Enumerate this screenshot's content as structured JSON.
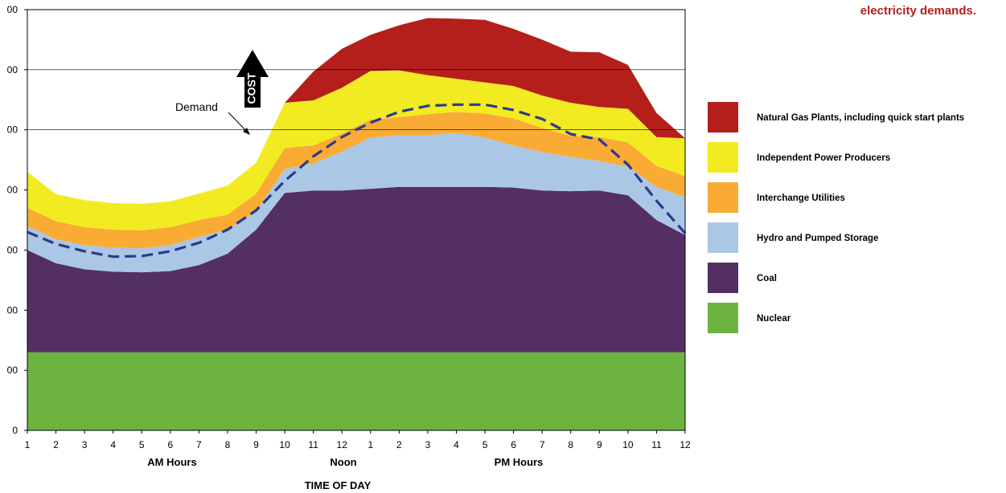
{
  "caption_text": "electricity demands.",
  "chart_data": {
    "type": "area",
    "stacked": true,
    "x": [
      1,
      2,
      3,
      4,
      5,
      6,
      7,
      8,
      9,
      10,
      11,
      12,
      13,
      14,
      15,
      16,
      17,
      18,
      19,
      20,
      21,
      22,
      23,
      24
    ],
    "x_tick_labels": [
      "1",
      "2",
      "3",
      "4",
      "5",
      "6",
      "7",
      "8",
      "9",
      "10",
      "11",
      "12",
      "1",
      "2",
      "3",
      "4",
      "5",
      "6",
      "7",
      "8",
      "9",
      "10",
      "11",
      "12"
    ],
    "y_tick_labels": [
      "0",
      "00",
      "00",
      "00",
      "00",
      "00",
      "00",
      "00"
    ],
    "ylim": [
      0,
      7000
    ],
    "grid_lines_at": [
      5000,
      6000
    ],
    "xlabel": "TIME OF DAY",
    "x_group_labels": [
      "AM Hours",
      "Noon",
      "PM Hours"
    ],
    "annotations": {
      "demand": "Demand",
      "cost": "COST"
    },
    "legend_position": "right",
    "series": [
      {
        "name": "Nuclear",
        "color": "#6db33f",
        "values": [
          1300,
          1300,
          1300,
          1300,
          1300,
          1300,
          1300,
          1300,
          1300,
          1300,
          1300,
          1300,
          1300,
          1300,
          1300,
          1300,
          1300,
          1300,
          1300,
          1300,
          1300,
          1300,
          1300,
          1300
        ]
      },
      {
        "name": "Coal",
        "color": "#532f63",
        "values": [
          1700,
          1480,
          1380,
          1340,
          1330,
          1350,
          1450,
          1640,
          2040,
          2650,
          2690,
          2690,
          2720,
          2750,
          2750,
          2750,
          2750,
          2740,
          2690,
          2680,
          2690,
          2610,
          2200,
          1950
        ]
      },
      {
        "name": "Hydro and Pumped Storage",
        "color": "#abc7e6",
        "values": [
          400,
          400,
          400,
          400,
          400,
          430,
          470,
          400,
          300,
          400,
          450,
          650,
          850,
          860,
          860,
          900,
          820,
          700,
          640,
          570,
          490,
          480,
          550,
          630
        ]
      },
      {
        "name": "Interchange  Utilities",
        "color": "#f9ab33",
        "values": [
          300,
          300,
          300,
          300,
          300,
          300,
          280,
          250,
          300,
          350,
          300,
          300,
          300,
          300,
          350,
          350,
          400,
          450,
          400,
          350,
          400,
          400,
          350,
          350
        ]
      },
      {
        "name": "Independent Power Producers",
        "color": "#f2eb22",
        "values": [
          600,
          450,
          450,
          440,
          440,
          430,
          440,
          480,
          510,
          750,
          750,
          760,
          810,
          780,
          650,
          550,
          520,
          540,
          540,
          550,
          500,
          560,
          480,
          630
        ]
      },
      {
        "name": "Natural Gas Plants, including quick start plants",
        "color": "#b51f1b",
        "values": [
          0,
          0,
          0,
          0,
          0,
          0,
          0,
          0,
          0,
          0,
          480,
          650,
          600,
          750,
          950,
          1000,
          1040,
          950,
          930,
          850,
          910,
          730,
          400,
          0
        ]
      }
    ],
    "demand_values": [
      3300,
      3100,
      2980,
      2890,
      2900,
      2980,
      3120,
      3340,
      3660,
      4150,
      4560,
      4880,
      5120,
      5300,
      5400,
      5420,
      5420,
      5330,
      5180,
      4930,
      4840,
      4420,
      3820,
      3280
    ]
  }
}
